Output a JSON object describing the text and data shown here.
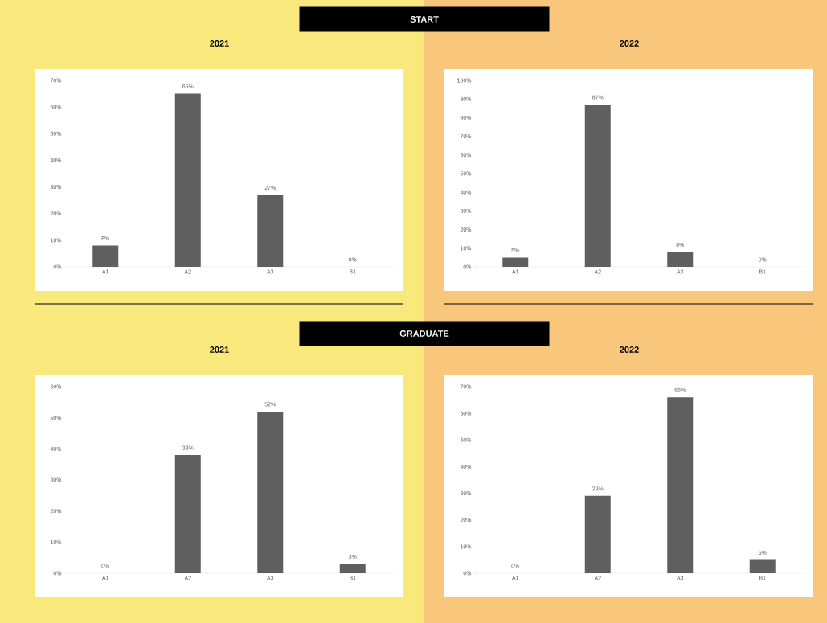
{
  "chart_data": [
    {
      "type": "bar",
      "title": "2021",
      "annotations": [
        "START"
      ],
      "categories": [
        "A1",
        "A2",
        "A3",
        "B1"
      ],
      "values": [
        8,
        65,
        27,
        0
      ],
      "value_labels": [
        "8%",
        "65%",
        "27%",
        "0%"
      ],
      "color": "#5f5f5f",
      "ylim": [
        0,
        70
      ],
      "yticks": [
        {
          "value": 0,
          "label": "0%"
        },
        {
          "value": 10,
          "label": "10%"
        },
        {
          "value": 20,
          "label": "20%"
        },
        {
          "value": 30,
          "label": "30%"
        },
        {
          "value": 40,
          "label": "40%"
        },
        {
          "value": 50,
          "label": "50%"
        },
        {
          "value": 60,
          "label": "60%"
        },
        {
          "value": 70,
          "label": "70%"
        }
      ]
    },
    {
      "type": "bar",
      "title": "2022",
      "categories": [
        "A1",
        "A2",
        "A3",
        "B1"
      ],
      "values": [
        5,
        87,
        8,
        0
      ],
      "value_labels": [
        "5%",
        "87%",
        "8%",
        "0%"
      ],
      "color": "#5f5f5f",
      "ylim": [
        0,
        100
      ],
      "yticks": [
        {
          "value": 0,
          "label": "0%"
        },
        {
          "value": 10,
          "label": "10%"
        },
        {
          "value": 20,
          "label": "20%"
        },
        {
          "value": 30,
          "label": "30%"
        },
        {
          "value": 40,
          "label": "40%"
        },
        {
          "value": 50,
          "label": "50%"
        },
        {
          "value": 60,
          "label": "60%"
        },
        {
          "value": 70,
          "label": "70%"
        },
        {
          "value": 80,
          "label": "80%"
        },
        {
          "value": 90,
          "label": "90%"
        },
        {
          "value": 100,
          "label": "100%"
        }
      ]
    },
    {
      "type": "bar",
      "title": "2021",
      "annotations": [
        "GRADUATE"
      ],
      "categories": [
        "A1",
        "A2",
        "A3",
        "B1"
      ],
      "values": [
        0,
        38,
        52,
        3
      ],
      "value_labels": [
        "0%",
        "38%",
        "52%",
        "3%"
      ],
      "color": "#5f5f5f",
      "ylim": [
        0,
        60
      ],
      "yticks": [
        {
          "value": 0,
          "label": "0%"
        },
        {
          "value": 10,
          "label": "10%"
        },
        {
          "value": 20,
          "label": "20%"
        },
        {
          "value": 30,
          "label": "30%"
        },
        {
          "value": 40,
          "label": "40%"
        },
        {
          "value": 50,
          "label": "50%"
        },
        {
          "value": 60,
          "label": "60%"
        }
      ]
    },
    {
      "type": "bar",
      "title": "2022",
      "categories": [
        "A1",
        "A2",
        "A3",
        "B1"
      ],
      "values": [
        0,
        29,
        66,
        5
      ],
      "value_labels": [
        "0%",
        "29%",
        "66%",
        "5%"
      ],
      "color": "#5f5f5f",
      "ylim": [
        0,
        70
      ],
      "yticks": [
        {
          "value": 0,
          "label": "0%"
        },
        {
          "value": 10,
          "label": "10%"
        },
        {
          "value": 20,
          "label": "20%"
        },
        {
          "value": 30,
          "label": "30%"
        },
        {
          "value": 40,
          "label": "40%"
        },
        {
          "value": 50,
          "label": "50%"
        },
        {
          "value": 60,
          "label": "60%"
        },
        {
          "value": 70,
          "label": "70%"
        }
      ]
    }
  ]
}
